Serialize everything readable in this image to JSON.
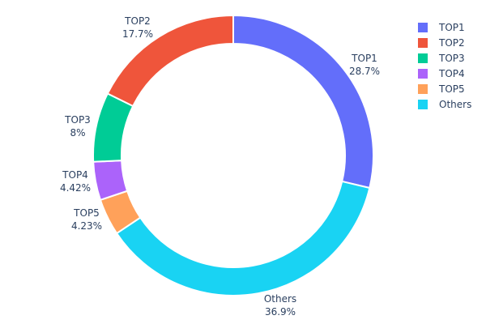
{
  "chart_data": {
    "type": "pie",
    "hole": true,
    "labels": [
      "TOP1",
      "Others",
      "TOP5",
      "TOP4",
      "TOP3",
      "TOP2"
    ],
    "values": [
      28.7,
      36.9,
      4.23,
      4.42,
      8,
      17.7
    ],
    "value_labels": [
      "28.7%",
      "36.9%",
      "4.23%",
      "4.42%",
      "8%",
      "17.7%"
    ],
    "colors": [
      "#636efa",
      "#19d3f3",
      "#ffa15a",
      "#ab63fa",
      "#00cc96",
      "#ef553b"
    ],
    "direction": "clockwise",
    "legend": {
      "placement": "top-right",
      "entries": [
        {
          "label": "TOP1",
          "color": "#636efa"
        },
        {
          "label": "TOP2",
          "color": "#ef553b"
        },
        {
          "label": "TOP3",
          "color": "#00cc96"
        },
        {
          "label": "TOP4",
          "color": "#ab63fa"
        },
        {
          "label": "TOP5",
          "color": "#ffa15a"
        },
        {
          "label": "Others",
          "color": "#19d3f3"
        }
      ]
    }
  }
}
